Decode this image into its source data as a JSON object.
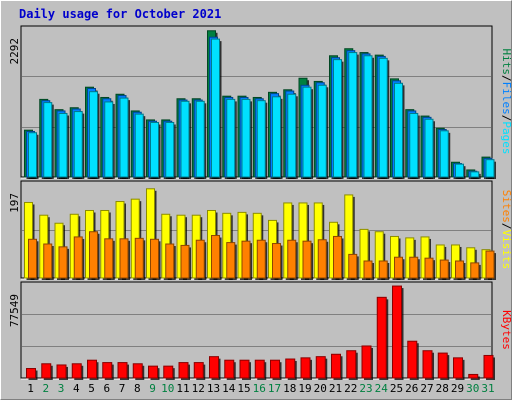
{
  "title": "Daily usage for October 2021",
  "colors": {
    "background": "#c0c0c0",
    "hits": "#008040",
    "files": "#0080ff",
    "pages": "#00e0ff",
    "visits": "#ffff00",
    "sites": "#ff8000",
    "kbytes": "#ff0000",
    "title": "#0000cc",
    "weekday_label": "#000000",
    "weekend_label": "#008040"
  },
  "chart_data": [
    {
      "type": "bar",
      "name": "hits-files-pages",
      "ytick": "2292",
      "ylim": [
        0,
        2292
      ],
      "categories": [
        "1",
        "2",
        "3",
        "4",
        "5",
        "6",
        "7",
        "8",
        "9",
        "10",
        "11",
        "12",
        "13",
        "14",
        "15",
        "16",
        "17",
        "18",
        "19",
        "20",
        "21",
        "22",
        "23",
        "24",
        "25",
        "26",
        "27",
        "28",
        "29",
        "30",
        "31"
      ],
      "weekend": [
        false,
        true,
        true,
        false,
        false,
        false,
        false,
        false,
        true,
        true,
        false,
        false,
        false,
        false,
        false,
        true,
        true,
        false,
        false,
        false,
        false,
        false,
        true,
        true,
        false,
        false,
        false,
        false,
        false,
        true,
        true
      ],
      "series": [
        {
          "name": "Hits",
          "values": [
            730,
            1210,
            1050,
            1080,
            1400,
            1240,
            1290,
            1030,
            890,
            890,
            1220,
            1220,
            2280,
            1260,
            1260,
            1240,
            1320,
            1360,
            1540,
            1490,
            1890,
            2000,
            1940,
            1900,
            1530,
            1050,
            950,
            760,
            230,
            110,
            310
          ]
        },
        {
          "name": "Files",
          "values": [
            710,
            1190,
            1030,
            1060,
            1380,
            1220,
            1270,
            1010,
            870,
            870,
            1200,
            1200,
            2180,
            1240,
            1240,
            1220,
            1300,
            1340,
            1430,
            1470,
            1860,
            1970,
            1920,
            1880,
            1500,
            1030,
            930,
            740,
            210,
            90,
            290
          ]
        },
        {
          "name": "Pages",
          "values": [
            690,
            1160,
            990,
            1020,
            1330,
            1170,
            1230,
            980,
            850,
            850,
            1180,
            1180,
            2150,
            1210,
            1210,
            1190,
            1250,
            1290,
            1400,
            1430,
            1830,
            1940,
            1890,
            1850,
            1460,
            990,
            900,
            720,
            200,
            80,
            270
          ]
        }
      ],
      "right_labels": [
        "Hits",
        "/",
        "Files",
        "/",
        "Pages"
      ]
    },
    {
      "type": "bar",
      "name": "visits-sites",
      "ytick": "197",
      "ylim": [
        0,
        197
      ],
      "series": [
        {
          "name": "Visits",
          "values": [
            160,
            133,
            116,
            135,
            143,
            143,
            162,
            167,
            189,
            135,
            133,
            133,
            143,
            137,
            139,
            137,
            122,
            159,
            159,
            159,
            118,
            176,
            103,
            98,
            88,
            85,
            87,
            70,
            70,
            64,
            60
          ]
        },
        {
          "name": "Sites",
          "values": [
            82,
            72,
            66,
            87,
            98,
            83,
            83,
            84,
            82,
            72,
            69,
            80,
            90,
            75,
            78,
            80,
            73,
            80,
            78,
            81,
            88,
            50,
            36,
            36,
            44,
            44,
            42,
            38,
            36,
            32,
            57
          ]
        }
      ],
      "right_labels": [
        "Sites",
        "/",
        "Visits"
      ]
    },
    {
      "type": "bar",
      "name": "kbytes",
      "ytick": "77549",
      "ylim": [
        0,
        77549
      ],
      "series": [
        {
          "name": "KBytes",
          "values": [
            8000,
            12000,
            11000,
            12000,
            15000,
            13000,
            13000,
            12000,
            10000,
            10000,
            13000,
            13000,
            18000,
            15000,
            15000,
            15000,
            15000,
            16000,
            17000,
            18000,
            20000,
            23000,
            27000,
            68000,
            77500,
            31000,
            23000,
            21000,
            17000,
            3000,
            19000
          ]
        }
      ],
      "right_labels": [
        "KBytes"
      ]
    }
  ]
}
